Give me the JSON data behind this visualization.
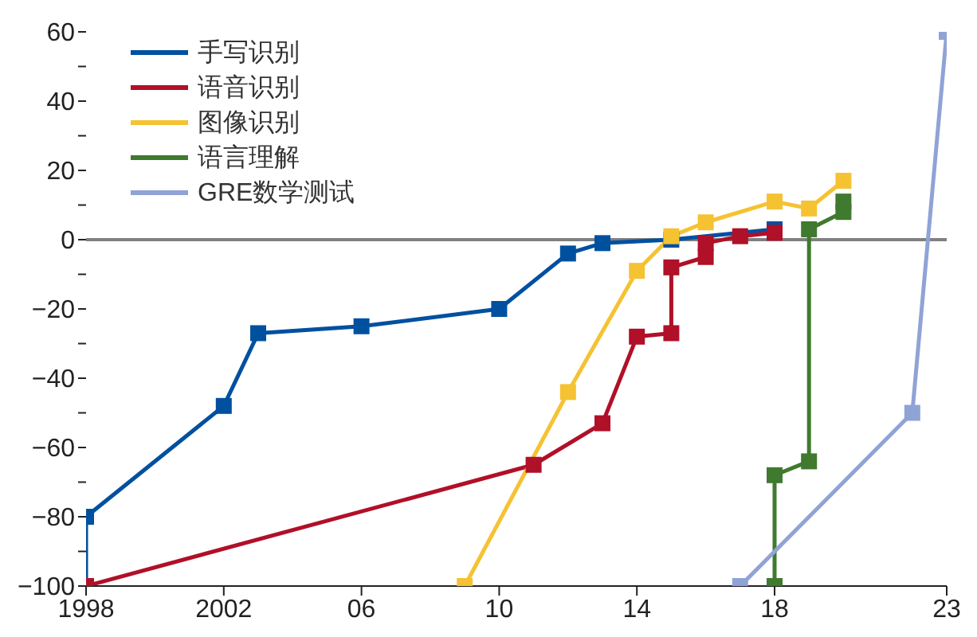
{
  "chart_data": {
    "type": "line",
    "marker": "square",
    "line_style": "solid",
    "legend": "top left",
    "xlim": [
      1998,
      2023
    ],
    "xticks": [
      1998,
      2002,
      {
        "value": 2006,
        "label": "06"
      },
      {
        "value": 2010,
        "label": "10"
      },
      {
        "value": 2014,
        "label": "14"
      },
      {
        "value": 2018,
        "label": "18"
      },
      {
        "value": 2023,
        "label": "23"
      }
    ],
    "ylim": [
      -100,
      60
    ],
    "yticks": [
      -100,
      {
        "value": -90,
        "label": null
      },
      -80,
      {
        "value": -70,
        "label": null
      },
      -60,
      {
        "value": -50,
        "label": null
      },
      -40,
      {
        "value": -30,
        "label": null
      },
      -20,
      {
        "value": -10,
        "label": null
      },
      0,
      {
        "value": 10,
        "label": null
      },
      20,
      {
        "value": 30,
        "label": null
      },
      40,
      {
        "value": 50,
        "label": null
      },
      60
    ],
    "ref_lines": [
      {
        "axis": "y",
        "value": 0,
        "color": "#808080"
      }
    ],
    "series": [
      {
        "name": "手写识别",
        "color": "#0050a0",
        "x": [
          1998,
          1998,
          2002,
          2003,
          2006,
          2010,
          2012,
          2013,
          2015,
          2018
        ],
        "values": [
          -100,
          -80,
          -48,
          -27,
          -25,
          -20,
          -4,
          -1,
          0,
          3
        ]
      },
      {
        "name": "语音识别",
        "color": "#b01028",
        "x": [
          1998,
          2011,
          2013,
          2014,
          2015,
          2015,
          2016,
          2016,
          2017,
          2018
        ],
        "values": [
          -100,
          -65,
          -53,
          -28,
          -27,
          -8,
          -5,
          -1,
          1,
          2
        ]
      },
      {
        "name": "图像识别",
        "color": "#f5c232",
        "x": [
          2009,
          2012,
          2014,
          2015,
          2016,
          2018,
          2019,
          2020
        ],
        "values": [
          -100,
          -44,
          -9,
          1,
          5,
          11,
          9,
          17
        ]
      },
      {
        "name": "语言理解",
        "color": "#3f7a2e",
        "x": [
          2018,
          2018,
          2019,
          2019,
          2020,
          2020
        ],
        "values": [
          -100,
          -68,
          -64,
          3,
          8,
          11
        ]
      },
      {
        "name": "GRE数学测试",
        "color": "#8fa3d6",
        "x": [
          2017,
          2022,
          2023
        ],
        "values": [
          -100,
          -50,
          60
        ]
      }
    ]
  }
}
